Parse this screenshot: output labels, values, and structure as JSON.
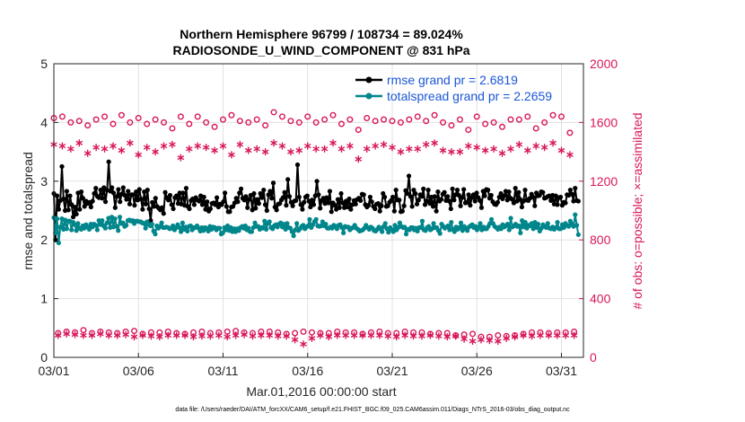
{
  "chart_data": {
    "type": "line",
    "title": "Northern Hemisphere 96799 / 108734 = 89.024%",
    "subtitle": "RADIOSONDE_U_WIND_COMPONENT @ 831 hPa",
    "xlabel": "Mar.01,2016 00:00:00 start",
    "ylabel": "rmse and totalspread",
    "y2label": "# of obs: o=possible; ×=assimilated",
    "ylim": [
      0,
      5
    ],
    "y2lim": [
      0,
      2000
    ],
    "xlim": [
      0,
      31.3
    ],
    "yticks": [
      "0",
      "1",
      "2",
      "3",
      "4",
      "5"
    ],
    "y2ticks": [
      "0",
      "400",
      "800",
      "1200",
      "1600",
      "2000"
    ],
    "xticks": [
      {
        "x": 0,
        "label": "03/01"
      },
      {
        "x": 5,
        "label": "03/06"
      },
      {
        "x": 10,
        "label": "03/11"
      },
      {
        "x": 15,
        "label": "03/16"
      },
      {
        "x": 20,
        "label": "03/21"
      },
      {
        "x": 25,
        "label": "03/26"
      },
      {
        "x": 30,
        "label": "03/31"
      }
    ],
    "grid": true,
    "legend_position": "top-right",
    "footnote": "data file: /Users/raeder/DAI/ATM_forcXX/CAM6_setup/f.e21.FHIST_BGC.f09_025.CAM6assim.011/Diags_NTrS_2016-03/obs_diag_output.nc",
    "colors": {
      "rmse": "#000000",
      "spread": "#00868b",
      "obs": "#d8175b"
    },
    "series": [
      {
        "name": "rmse grand pr = 2.6819",
        "axis": "left",
        "values": [
          2.79,
          2.0,
          2.75,
          2.52,
          2.67,
          3.25,
          2.7,
          2.5,
          2.83,
          2.51,
          2.75,
          2.6,
          2.39,
          2.56,
          2.44,
          2.8,
          2.52,
          2.82,
          2.71,
          2.57,
          2.66,
          2.62,
          2.64,
          2.56,
          2.66,
          2.79,
          2.88,
          2.74,
          2.72,
          2.85,
          2.71,
          2.89,
          2.65,
          2.85,
          3.33,
          2.83,
          2.89,
          2.8,
          2.55,
          2.74,
          2.86,
          2.65,
          2.78,
          2.89,
          2.76,
          2.69,
          2.83,
          2.61,
          2.77,
          2.77,
          2.59,
          2.82,
          2.68,
          2.86,
          2.7,
          2.52,
          2.82,
          2.61,
          2.85,
          2.53,
          2.33,
          2.64,
          2.57,
          2.71,
          2.57,
          2.54,
          2.51,
          2.55,
          2.45,
          2.81,
          2.72,
          2.68,
          2.76,
          2.6,
          2.53,
          2.72,
          2.75,
          2.62,
          2.8,
          2.61,
          2.8,
          2.59,
          2.88,
          2.57,
          2.53,
          2.67,
          2.7,
          2.6,
          2.72,
          2.68,
          2.66,
          2.75,
          2.6,
          2.73,
          2.52,
          2.65,
          2.49,
          2.53,
          2.62,
          2.63,
          2.6,
          2.72,
          2.56,
          2.61,
          2.6,
          2.65,
          2.8,
          2.57,
          2.48,
          2.48,
          2.56,
          2.57,
          2.63,
          2.71,
          2.65,
          2.8,
          2.87,
          2.71,
          2.68,
          2.74,
          2.55,
          2.69,
          2.76,
          2.51,
          2.79,
          2.54,
          2.69,
          2.62,
          2.79,
          2.72,
          2.85,
          2.6,
          2.5,
          2.77,
          2.83,
          2.71,
          2.97,
          2.56,
          2.51,
          2.61,
          2.62,
          2.68,
          2.72,
          2.81,
          2.59,
          3.03,
          2.74,
          2.64,
          2.58,
          2.66,
          2.67,
          3.28,
          2.73,
          2.6,
          2.52,
          2.64,
          2.73,
          2.75,
          2.66,
          2.56,
          2.68,
          2.6,
          2.75,
          3.0,
          2.77,
          2.54,
          2.67,
          2.71,
          2.62,
          2.72,
          2.63,
          2.83,
          2.48,
          2.63,
          2.59,
          2.52,
          2.69,
          2.55,
          2.79,
          2.63,
          2.55,
          2.66,
          2.56,
          2.7,
          2.52,
          2.6,
          2.67,
          2.61,
          2.69,
          2.71,
          2.67,
          2.78,
          2.77,
          2.6,
          2.56,
          2.59,
          2.73,
          2.65,
          2.57,
          2.53,
          2.61,
          2.62,
          2.49,
          2.58,
          2.79,
          2.73,
          2.57,
          2.58,
          2.64,
          2.67,
          2.73,
          2.49,
          2.85,
          2.68,
          2.68,
          2.48,
          2.49,
          2.58,
          2.84,
          2.79,
          3.09,
          2.74,
          2.57,
          2.85,
          2.79,
          2.61,
          2.68,
          2.77,
          2.74,
          2.87,
          2.6,
          2.66,
          2.85,
          2.62,
          2.73,
          2.57,
          2.74,
          2.49,
          2.82,
          2.66,
          2.69,
          2.78,
          2.81,
          2.67,
          2.74,
          2.66,
          2.53,
          2.87,
          2.68,
          2.77,
          2.85,
          2.76,
          2.58,
          2.72,
          2.86,
          2.63,
          2.64,
          2.77,
          2.59,
          2.72,
          2.77,
          2.66,
          2.8,
          2.72,
          2.67,
          2.55,
          2.83,
          2.75,
          2.86,
          2.85,
          2.71,
          2.76,
          2.65,
          2.61,
          2.6,
          2.64,
          2.73,
          2.79,
          2.7,
          2.75,
          2.83,
          2.68,
          2.82,
          2.71,
          2.69,
          2.63,
          2.88,
          2.66,
          2.81,
          2.69,
          2.56,
          2.66,
          2.85,
          2.68,
          2.67,
          2.71,
          2.78,
          2.73,
          2.58,
          2.8,
          2.75,
          2.76,
          2.82,
          2.81,
          2.71,
          2.72,
          2.74,
          2.75,
          2.67,
          2.76,
          2.61,
          2.75,
          2.6,
          2.72,
          2.73,
          2.59,
          2.64,
          2.63,
          2.77,
          2.76,
          2.85,
          2.78,
          2.66,
          2.88,
          2.67,
          2.66
        ]
      },
      {
        "name": "totalspread grand pr = 2.2659",
        "axis": "left",
        "values": [
          2.38,
          2.12,
          2.36,
          1.95,
          2.22,
          2.36,
          2.18,
          2.34,
          2.19,
          2.32,
          2.32,
          2.17,
          2.3,
          2.26,
          2.16,
          2.28,
          2.2,
          2.18,
          2.24,
          2.2,
          2.26,
          2.22,
          2.18,
          2.27,
          2.22,
          2.27,
          2.25,
          2.17,
          2.33,
          2.26,
          2.33,
          2.24,
          2.2,
          2.29,
          2.37,
          2.21,
          2.39,
          2.22,
          2.36,
          2.23,
          2.16,
          2.39,
          2.28,
          2.29,
          2.23,
          2.25,
          2.33,
          2.34,
          2.32,
          2.33,
          2.28,
          2.32,
          2.32,
          2.31,
          2.31,
          2.29,
          2.28,
          2.2,
          2.31,
          2.26,
          2.24,
          2.27,
          2.15,
          2.1,
          2.24,
          2.2,
          2.23,
          2.29,
          2.21,
          2.21,
          2.22,
          2.21,
          2.19,
          2.2,
          2.24,
          2.17,
          2.21,
          2.26,
          2.21,
          2.14,
          2.29,
          2.18,
          2.22,
          2.15,
          2.23,
          2.24,
          2.17,
          2.21,
          2.21,
          2.24,
          2.2,
          2.15,
          2.21,
          2.16,
          2.21,
          2.19,
          2.15,
          2.23,
          2.18,
          2.22,
          2.21,
          2.17,
          2.2,
          2.2,
          2.1,
          2.12,
          2.21,
          2.17,
          2.24,
          2.16,
          2.21,
          2.14,
          2.19,
          2.14,
          2.19,
          2.16,
          2.21,
          2.23,
          2.2,
          2.24,
          2.17,
          2.2,
          2.14,
          2.14,
          2.21,
          2.29,
          2.23,
          2.23,
          2.18,
          2.21,
          2.2,
          2.32,
          2.18,
          2.28,
          2.31,
          2.21,
          2.19,
          2.24,
          2.26,
          2.22,
          2.27,
          2.29,
          2.22,
          2.27,
          2.18,
          2.28,
          2.21,
          2.2,
          2.14,
          2.07,
          2.17,
          2.28,
          2.16,
          2.19,
          2.23,
          2.25,
          2.19,
          2.22,
          2.24,
          2.35,
          2.21,
          2.26,
          2.31,
          2.35,
          2.24,
          2.23,
          2.24,
          2.31,
          2.24,
          2.27,
          2.2,
          2.2,
          2.22,
          2.2,
          2.25,
          2.23,
          2.19,
          2.25,
          2.26,
          2.21,
          2.12,
          2.23,
          2.22,
          2.22,
          2.17,
          2.2,
          2.21,
          2.25,
          2.2,
          2.18,
          2.15,
          2.16,
          2.17,
          2.2,
          2.25,
          2.21,
          2.18,
          2.22,
          2.2,
          2.16,
          2.15,
          2.18,
          2.22,
          2.19,
          2.14,
          2.23,
          2.28,
          2.19,
          2.13,
          2.21,
          2.18,
          2.14,
          2.25,
          2.17,
          2.21,
          2.29,
          2.23,
          2.21,
          2.22,
          2.1,
          2.18,
          2.17,
          2.21,
          2.21,
          2.17,
          2.2,
          2.15,
          2.21,
          2.21,
          2.32,
          2.17,
          2.16,
          2.21,
          2.23,
          2.17,
          2.19,
          2.28,
          2.21,
          2.21,
          2.16,
          2.11,
          2.27,
          2.23,
          2.2,
          2.22,
          2.24,
          2.17,
          2.3,
          2.18,
          2.14,
          2.22,
          2.18,
          2.21,
          2.29,
          2.16,
          2.23,
          2.2,
          2.16,
          2.22,
          2.24,
          2.26,
          2.21,
          2.23,
          2.17,
          2.22,
          2.28,
          2.17,
          2.22,
          2.19,
          2.19,
          2.23,
          2.28,
          2.35,
          2.28,
          2.23,
          2.21,
          2.18,
          2.22,
          2.19,
          2.26,
          2.22,
          2.24,
          2.27,
          2.17,
          2.37,
          2.22,
          2.24,
          2.27,
          2.23,
          2.24,
          2.12,
          2.33,
          2.22,
          2.3,
          2.2,
          2.25,
          2.24,
          2.28,
          2.19,
          2.3,
          2.21,
          2.27,
          2.15,
          2.2,
          2.26,
          2.23,
          2.21,
          2.28,
          2.2,
          2.19,
          2.22,
          2.18,
          2.21,
          2.3,
          2.19,
          2.19,
          2.26,
          2.21,
          2.28,
          2.25,
          2.23,
          2.32,
          2.27,
          2.23,
          2.43,
          2.25,
          2.09
        ]
      },
      {
        "name": "obs possible (0000Z)",
        "axis": "right",
        "marker": "circle",
        "values": [
          1630,
          1640,
          1600,
          1610,
          1580,
          1620,
          1640,
          1590,
          1650,
          1600,
          1630,
          1590,
          1620,
          1600,
          1560,
          1640,
          1590,
          1640,
          1600,
          1570,
          1620,
          1650,
          1610,
          1600,
          1620,
          1580,
          1670,
          1640,
          1610,
          1600,
          1640,
          1600,
          1620,
          1650,
          1590,
          1620,
          1550,
          1630,
          1610,
          1620,
          1610,
          1600,
          1620,
          1640,
          1610,
          1650,
          1600,
          1580,
          1620,
          1550,
          1640,
          1590,
          1600,
          1570,
          1620,
          1620,
          1640,
          1560,
          1600,
          1650,
          1640,
          1530
        ]
      },
      {
        "name": "obs assimilated (0000Z)",
        "axis": "right",
        "marker": "asterisk",
        "values": [
          1450,
          1440,
          1420,
          1460,
          1390,
          1430,
          1420,
          1440,
          1410,
          1460,
          1380,
          1430,
          1400,
          1440,
          1450,
          1360,
          1420,
          1440,
          1430,
          1410,
          1440,
          1380,
          1450,
          1410,
          1420,
          1400,
          1460,
          1440,
          1400,
          1410,
          1440,
          1420,
          1420,
          1460,
          1420,
          1440,
          1350,
          1420,
          1440,
          1450,
          1430,
          1400,
          1420,
          1420,
          1450,
          1460,
          1410,
          1400,
          1400,
          1440,
          1430,
          1410,
          1420,
          1390,
          1420,
          1450,
          1410,
          1440,
          1430,
          1460,
          1410,
          1380
        ]
      },
      {
        "name": "obs possible (1200Z)",
        "axis": "right",
        "marker": "circle",
        "values": [
          165,
          175,
          170,
          185,
          165,
          175,
          170,
          165,
          175,
          180,
          160,
          170,
          170,
          175,
          165,
          160,
          170,
          175,
          165,
          170,
          175,
          180,
          170,
          165,
          175,
          175,
          170,
          160,
          165,
          175,
          170,
          165,
          165,
          175,
          170,
          170,
          160,
          170,
          175,
          165,
          165,
          175,
          170,
          170,
          160,
          165,
          165,
          150,
          155,
          160,
          140,
          140,
          150,
          145,
          150,
          160,
          170,
          170,
          165,
          170,
          170,
          175
        ]
      },
      {
        "name": "obs assimilated (1200Z)",
        "axis": "right",
        "marker": "asterisk",
        "values": [
          150,
          160,
          155,
          150,
          150,
          160,
          150,
          150,
          155,
          140,
          150,
          145,
          140,
          150,
          150,
          150,
          140,
          145,
          145,
          150,
          140,
          150,
          155,
          145,
          150,
          150,
          145,
          145,
          120,
          90,
          130,
          150,
          140,
          150,
          150,
          150,
          150,
          150,
          150,
          145,
          140,
          150,
          145,
          145,
          150,
          145,
          140,
          145,
          125,
          110,
          120,
          115,
          110,
          130,
          140,
          150,
          145,
          150,
          150,
          150,
          150,
          150
        ]
      }
    ]
  }
}
